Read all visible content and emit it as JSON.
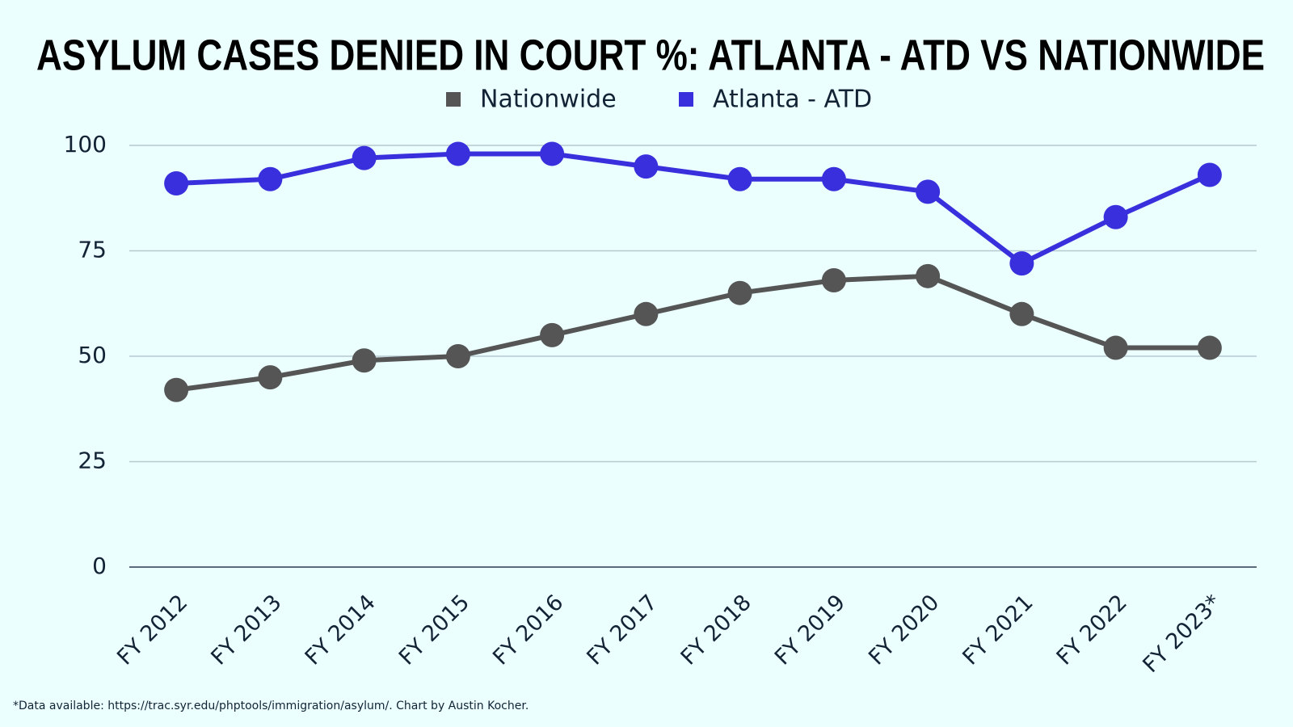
{
  "chart_data": {
    "type": "line",
    "title": "ASYLUM CASES DENIED IN COURT %: ATLANTA - ATD VS NATIONWIDE",
    "categories": [
      "FY 2012",
      "FY 2013",
      "FY 2014",
      "FY 2015",
      "FY 2016",
      "FY 2017",
      "FY 2018",
      "FY 2019",
      "FY 2020",
      "FY 2021",
      "FY 2022",
      "FY 2023*"
    ],
    "series": [
      {
        "name": "Nationwide",
        "color": "#555555",
        "values": [
          42,
          45,
          49,
          50,
          55,
          60,
          65,
          68,
          69,
          60,
          52,
          52
        ]
      },
      {
        "name": "Atlanta - ATD",
        "color": "#3a2fdc",
        "values": [
          91,
          92,
          97,
          98,
          98,
          95,
          92,
          92,
          89,
          72,
          83,
          93
        ]
      }
    ],
    "ylim": [
      0,
      100
    ],
    "yticks": [
      0,
      25,
      50,
      75,
      100
    ],
    "grid": true,
    "legend": "top",
    "footnote": "*Data available: https://trac.syr.edu/phptools/immigration/asylum/. Chart by Austin Kocher."
  }
}
